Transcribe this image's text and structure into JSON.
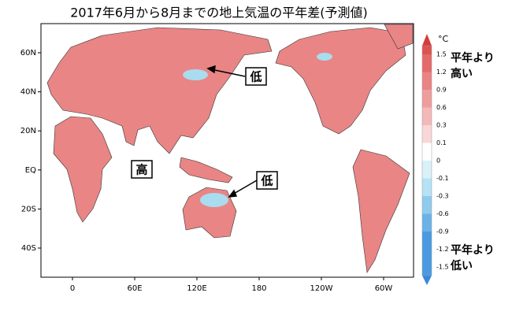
{
  "title": "2017年6月から8月までの地上気温の平年差(予測値)",
  "map": {
    "lon_ticks": [
      "0",
      "60E",
      "120E",
      "180",
      "120W",
      "60W"
    ],
    "lat_ticks": [
      "60N",
      "40N",
      "20N",
      "EQ",
      "20S",
      "40S"
    ],
    "annotations": [
      {
        "text": "低",
        "color": "#1a6fd6"
      },
      {
        "text": "高",
        "color": "#e00000"
      },
      {
        "text": "低",
        "color": "#1a6fd6"
      }
    ]
  },
  "colorbar": {
    "unit": "°C",
    "labels": [
      "1.5",
      "1.2",
      "0.9",
      "0.6",
      "0.3",
      "0.1",
      "0",
      "-0.1",
      "-0.3",
      "-0.6",
      "-0.9",
      "-1.2",
      "-1.5"
    ],
    "colors": [
      "#d63b3b",
      "#de5252",
      "#e46a6a",
      "#ea8383",
      "#ef9c9c",
      "#f4b8b8",
      "#f9d7d7",
      "#ffffff",
      "#d9f2fa",
      "#b5e2f4",
      "#8fcbee",
      "#6ab2e8",
      "#4a9ae2",
      "#3a86dc"
    ],
    "high_label": [
      "平年より",
      "高い"
    ],
    "low_label": [
      "平年より",
      "低い"
    ]
  }
}
